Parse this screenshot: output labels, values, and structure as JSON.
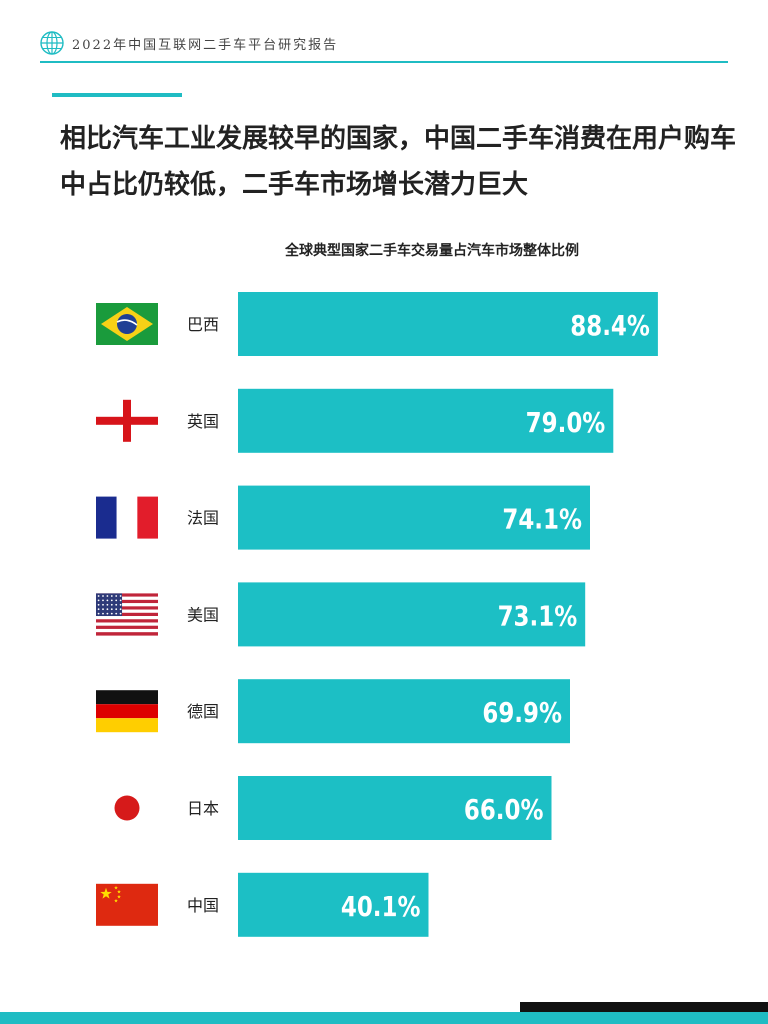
{
  "header": {
    "report_title": "2022年中国互联网二手车平台研究报告"
  },
  "headline": "相比汽车工业发展较早的国家，中国二手车消费在用户购车中占比仍较低，二手车市场增长潜力巨大",
  "colors": {
    "accent": "#1fbcc3",
    "bar": "#1cbfc5",
    "text": "#222222"
  },
  "chart_data": {
    "type": "bar",
    "orientation": "horizontal",
    "title": "全球典型国家二手车交易量占汽车市场整体比例",
    "categories": [
      "巴西",
      "英国",
      "法国",
      "美国",
      "德国",
      "日本",
      "中国"
    ],
    "flags": [
      "brazil-flag-icon",
      "england-flag-icon",
      "france-flag-icon",
      "usa-flag-icon",
      "germany-flag-icon",
      "japan-flag-icon",
      "china-flag-icon"
    ],
    "values": [
      88.4,
      79.0,
      74.1,
      73.1,
      69.9,
      66.0,
      40.1
    ],
    "data_labels": [
      "88.4%",
      "79.0%",
      "74.1%",
      "73.1%",
      "69.9%",
      "66.0%",
      "40.1%"
    ],
    "unit": "%",
    "xlim": [
      0,
      100
    ],
    "grid": false,
    "legend": "none"
  }
}
